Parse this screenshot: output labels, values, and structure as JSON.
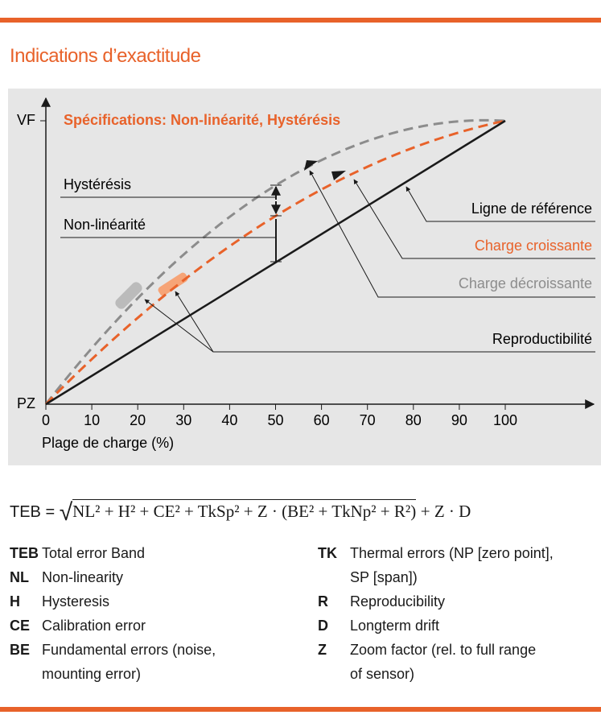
{
  "header": {
    "title": "Indications d’exactitude"
  },
  "diagram": {
    "subtitle": "Spécifications: Non-linéarité, Hystérésis",
    "y_labels": [
      "VF",
      "PZ"
    ],
    "x_ticks": [
      0,
      10,
      20,
      30,
      40,
      50,
      60,
      70,
      80,
      90,
      100
    ],
    "x_label": "Plage de charge (%)",
    "left_labels": [
      "Hystérésis",
      "Non-linéarité"
    ],
    "right_labels": [
      "Ligne de référence",
      "Charge croissante",
      "Charge décroissante",
      "Reproductibilité"
    ]
  },
  "formula": {
    "lhs": "TEB =",
    "radicand": "NL² + H² + CE² + TkSp² + Z · (BE² + TkNp² + R²)",
    "tail": "+ Z · D"
  },
  "definitions": {
    "left": [
      {
        "abbr": "TEB",
        "lines": [
          "Total error Band"
        ]
      },
      {
        "abbr": "NL",
        "lines": [
          "Non-linearity"
        ]
      },
      {
        "abbr": "H",
        "lines": [
          "Hysteresis"
        ]
      },
      {
        "abbr": "CE",
        "lines": [
          "Calibration error"
        ]
      },
      {
        "abbr": "BE",
        "lines": [
          "Fundamental errors (noise,",
          "mounting error)"
        ]
      }
    ],
    "right": [
      {
        "abbr": "TK",
        "lines": [
          "Thermal errors (NP [zero point],",
          "SP [span])"
        ]
      },
      {
        "abbr": "R",
        "lines": [
          "Reproducibility"
        ]
      },
      {
        "abbr": "D",
        "lines": [
          "Longterm drift"
        ]
      },
      {
        "abbr": "Z",
        "lines": [
          "Zoom factor (rel. to full range",
          "of sensor)"
        ]
      }
    ]
  }
}
